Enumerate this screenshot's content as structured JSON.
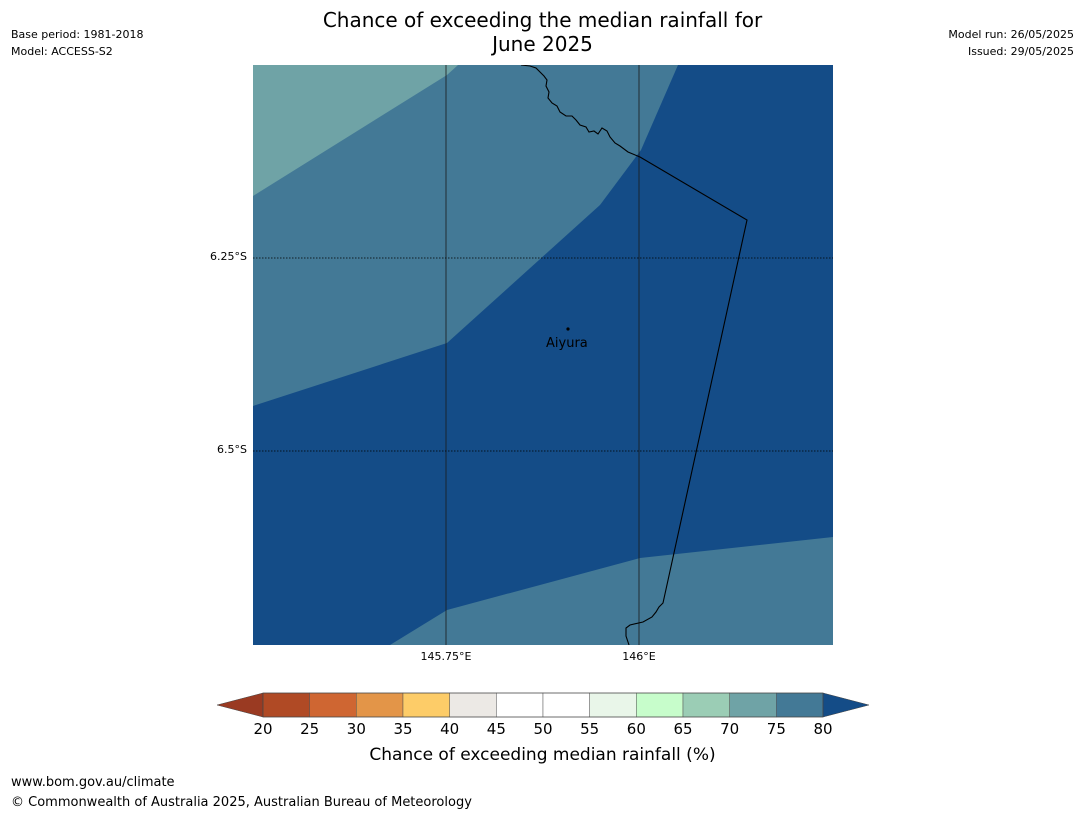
{
  "header": {
    "title_line1": "Chance of exceeding the median rainfall for",
    "title_line2": "June 2025",
    "base_period": "Base period: 1981-2018",
    "model": "Model: ACCESS-S2",
    "model_run": "Model run: 26/05/2025",
    "issued": "Issued: 29/05/2025"
  },
  "map": {
    "place_name": "Aiyura",
    "lat_labels": [
      "6.25°S",
      "6.5°S"
    ],
    "lon_labels": [
      "145.75°E",
      "146°E"
    ],
    "colors": {
      "c70_75": "#6fa3a6",
      "c75_80": "#437996",
      "c80_plus": "#144c87"
    }
  },
  "colorbar": {
    "title": "Chance of exceeding median rainfall (%)",
    "ticks": [
      "20",
      "25",
      "30",
      "35",
      "40",
      "45",
      "50",
      "55",
      "60",
      "65",
      "70",
      "75",
      "80"
    ],
    "under_color": "#9a3a22",
    "over_color": "#144c87",
    "colors": [
      "#b04a25",
      "#cf6632",
      "#e39548",
      "#fdcc68",
      "#ece9e5",
      "#ffffff",
      "#ffffff",
      "#e9f6e9",
      "#c7fdcb",
      "#9bcdb5",
      "#6fa3a6",
      "#437996"
    ]
  },
  "footer": {
    "url": "www.bom.gov.au/climate",
    "copyright": "© Commonwealth of Australia 2025, Australian Bureau of Meteorology"
  }
}
